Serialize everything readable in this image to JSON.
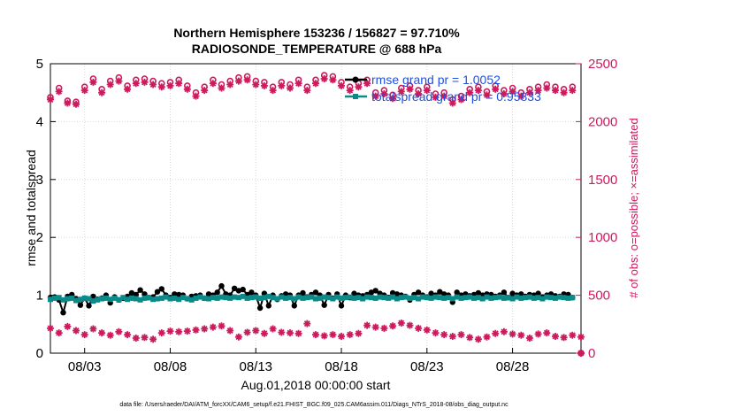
{
  "chart_data": {
    "type": "line",
    "title_line1": "Northern Hemisphere 153236 / 156827 = 97.710%",
    "title_line2": "RADIOSONDE_TEMPERATURE @ 688 hPa",
    "xlabel": "Aug.01,2018 00:00:00 start",
    "ylabel_left": "rmse and totalspread",
    "ylabel_right": "# of obs: o=possible; ×=assimilated",
    "footer": "data file: /Users/raeder/DAI/ATM_forcXX/CAM6_setup/f.e21.FHIST_BGC.f09_025.CAM6assim.011/Diags_NTrS_2018-08/obs_diag_output.nc",
    "x_ticks": [
      {
        "label": "08/03",
        "day": 3
      },
      {
        "label": "08/08",
        "day": 8
      },
      {
        "label": "08/13",
        "day": 13
      },
      {
        "label": "08/18",
        "day": 18
      },
      {
        "label": "08/23",
        "day": 23
      },
      {
        "label": "08/28",
        "day": 28
      }
    ],
    "x_range": [
      1,
      32
    ],
    "y_left_range": [
      0,
      5
    ],
    "y_left_ticks": [
      "0",
      "1",
      "2",
      "3",
      "4",
      "5"
    ],
    "y_right_range": [
      0,
      2500
    ],
    "y_right_ticks": [
      "0",
      "500",
      "1000",
      "1500",
      "2000",
      "2500"
    ],
    "legend": [
      {
        "name": "rmse grand pr = 1.0052",
        "color": "#000000"
      },
      {
        "name": "totalspread grand pr = 0.95833",
        "color": "#0b8a8a"
      }
    ],
    "series": [
      {
        "name": "rmse",
        "axis": "left",
        "color": "#000000",
        "x_start": 1.0,
        "x_step": 0.25,
        "values": [
          0.96,
          0.97,
          0.92,
          0.7,
          0.98,
          1.01,
          0.94,
          0.83,
          0.95,
          0.82,
          0.98,
          0.93,
          0.95,
          1.0,
          0.87,
          0.97,
          0.92,
          0.95,
          0.98,
          1.04,
          1.01,
          1.09,
          1.02,
          0.96,
          0.97,
          1.06,
          1.11,
          1.0,
          0.96,
          1.02,
          1.01,
          1.0,
          0.94,
          0.98,
          0.99,
          1.0,
          0.95,
          1.02,
          1.0,
          1.05,
          1.16,
          1.02,
          1.0,
          1.12,
          1.08,
          1.1,
          1.01,
          1.05,
          1.0,
          0.78,
          1.03,
          0.82,
          1.0,
          0.93,
          0.99,
          1.02,
          1.0,
          0.82,
          1.0,
          1.04,
          0.97,
          1.01,
          1.05,
          1.0,
          0.83,
          1.01,
          0.95,
          1.02,
          0.82,
          1.0,
          0.96,
          1.03,
          1.0,
          0.99,
          1.01,
          1.05,
          1.08,
          1.03,
          1.0,
          0.96,
          1.04,
          1.02,
          1.0,
          0.98,
          0.92,
          1.01,
          1.05,
          1.0,
          0.97,
          1.03,
          1.0,
          1.06,
          1.02,
          1.0,
          0.88,
          1.05,
          1.0,
          1.02,
          0.99,
          1.01,
          1.04,
          1.0,
          1.02,
          1.01,
          0.98,
          1.0,
          1.05,
          0.96,
          1.03,
          1.0,
          1.02,
          0.98,
          1.01,
          1.0,
          1.03,
          0.97,
          1.0,
          1.02,
          0.99,
          0.98,
          1.02,
          1.01,
          0.96
        ]
      },
      {
        "name": "totalspread",
        "axis": "left",
        "color": "#0b8a8a",
        "x_start": 1.0,
        "x_step": 0.25,
        "values": [
          0.93,
          0.95,
          0.96,
          0.92,
          0.94,
          0.95,
          0.91,
          0.93,
          0.95,
          0.94,
          0.9,
          0.92,
          0.94,
          0.95,
          0.93,
          0.95,
          0.92,
          0.96,
          0.93,
          0.95,
          0.94,
          0.92,
          0.95,
          0.96,
          0.93,
          0.94,
          0.95,
          0.97,
          0.94,
          0.95,
          0.93,
          0.96,
          0.94,
          0.92,
          0.95,
          0.97,
          0.95,
          0.94,
          0.96,
          0.95,
          0.97,
          0.96,
          0.95,
          0.97,
          0.96,
          0.98,
          0.95,
          0.96,
          0.97,
          0.95,
          0.96,
          0.98,
          0.96,
          0.94,
          0.97,
          0.95,
          0.96,
          0.94,
          0.97,
          0.95,
          0.96,
          0.97,
          0.94,
          0.95,
          0.97,
          0.96,
          0.94,
          0.97,
          0.95,
          0.96,
          0.97,
          0.95,
          0.96,
          0.94,
          0.97,
          0.96,
          0.95,
          0.97,
          0.96,
          0.95,
          0.97,
          0.94,
          0.96,
          0.97,
          0.95,
          0.96,
          0.94,
          0.97,
          0.96,
          0.95,
          0.97,
          0.96,
          0.95,
          0.96,
          0.94,
          0.97,
          0.95,
          0.96,
          0.97,
          0.95,
          0.96,
          0.94,
          0.97,
          0.95,
          0.96,
          0.97,
          0.95,
          0.96,
          0.94,
          0.97,
          0.95,
          0.96,
          0.97,
          0.95,
          0.96,
          0.94,
          0.97,
          0.96,
          0.95,
          0.97,
          0.96,
          0.95,
          0.96
        ]
      },
      {
        "name": "obs possible",
        "axis": "right",
        "marker": "circle",
        "color": "#cc1a5c",
        "x_start": 1.0,
        "x_step": 0.5,
        "values": [
          2210,
          2290,
          2180,
          2170,
          2300,
          2370,
          2280,
          2350,
          2380,
          2310,
          2360,
          2370,
          2350,
          2330,
          2340,
          2360,
          2310,
          2250,
          2300,
          2360,
          2320,
          2350,
          2380,
          2390,
          2350,
          2340,
          2300,
          2340,
          2320,
          2360,
          2300,
          2360,
          2400,
          2390,
          2340,
          2300,
          2330,
          2360,
          2250,
          2270,
          2230,
          2290,
          2310,
          2270,
          2300,
          2240,
          2250,
          2190,
          2220,
          2280,
          2300,
          2260,
          2310,
          2270,
          2290,
          2250,
          2280,
          2300,
          2320,
          2300,
          2280,
          2300,
          0
        ]
      },
      {
        "name": "obs assimilated",
        "axis": "right",
        "marker": "star",
        "color": "#cc1a5c",
        "x_start": 1.0,
        "x_step": 0.5,
        "values": [
          2190,
          2260,
          2160,
          2150,
          2270,
          2340,
          2250,
          2320,
          2350,
          2280,
          2330,
          2340,
          2320,
          2300,
          2310,
          2330,
          2280,
          2220,
          2270,
          2330,
          2290,
          2320,
          2350,
          2360,
          2320,
          2310,
          2270,
          2310,
          2290,
          2330,
          2270,
          2330,
          2370,
          2360,
          2310,
          2270,
          2300,
          2330,
          2220,
          2240,
          2200,
          2260,
          2280,
          2240,
          2270,
          2210,
          2220,
          2160,
          2190,
          2250,
          2270,
          2230,
          2280,
          2240,
          2260,
          2220,
          2250,
          2270,
          2290,
          2270,
          2250,
          2270,
          0
        ]
      },
      {
        "name": "obs used (lower)",
        "axis": "right",
        "marker": "star",
        "color": "#cc1a5c",
        "x_start": 1.0,
        "x_step": 0.5,
        "values": [
          215,
          175,
          230,
          195,
          160,
          210,
          175,
          155,
          185,
          160,
          130,
          135,
          120,
          175,
          190,
          185,
          190,
          200,
          210,
          225,
          235,
          195,
          140,
          180,
          195,
          170,
          210,
          180,
          175,
          170,
          255,
          160,
          150,
          160,
          145,
          160,
          170,
          240,
          225,
          215,
          235,
          260,
          240,
          215,
          200,
          175,
          160,
          145,
          160,
          135,
          120,
          140,
          170,
          185,
          165,
          155,
          130,
          165,
          175,
          145,
          135,
          155,
          140
        ]
      }
    ]
  }
}
